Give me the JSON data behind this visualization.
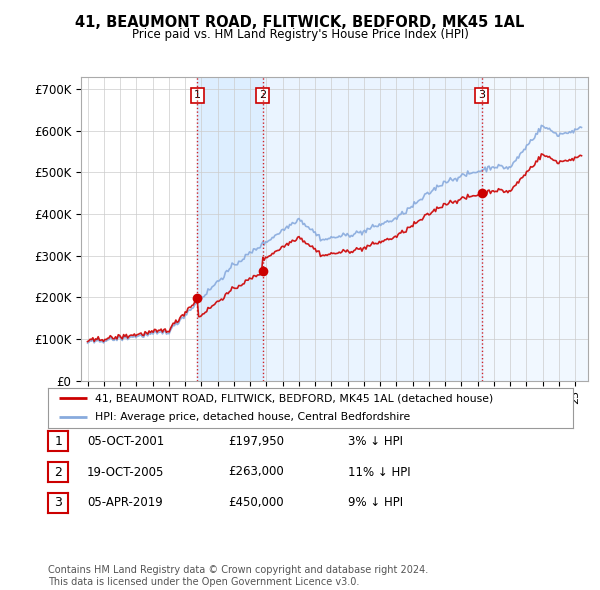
{
  "title": "41, BEAUMONT ROAD, FLITWICK, BEDFORD, MK45 1AL",
  "subtitle": "Price paid vs. HM Land Registry's House Price Index (HPI)",
  "ylim": [
    0,
    730000
  ],
  "yticks": [
    0,
    100000,
    200000,
    300000,
    400000,
    500000,
    600000,
    700000
  ],
  "ytick_labels": [
    "£0",
    "£100K",
    "£200K",
    "£300K",
    "£400K",
    "£500K",
    "£600K",
    "£700K"
  ],
  "xlim_left": 1994.6,
  "xlim_right": 2025.8,
  "sale_dates": [
    2001.76,
    2005.79,
    2019.26
  ],
  "sale_prices": [
    197950,
    263000,
    450000
  ],
  "sale_labels": [
    "1",
    "2",
    "3"
  ],
  "vline_color": "#cc0000",
  "sale_marker_color": "#cc0000",
  "hpi_line_color": "#88aadd",
  "price_line_color": "#cc0000",
  "span_color": "#ddeeff",
  "legend_label_price": "41, BEAUMONT ROAD, FLITWICK, BEDFORD, MK45 1AL (detached house)",
  "legend_label_hpi": "HPI: Average price, detached house, Central Bedfordshire",
  "table_rows": [
    [
      "1",
      "05-OCT-2001",
      "£197,950",
      "3% ↓ HPI"
    ],
    [
      "2",
      "19-OCT-2005",
      "£263,000",
      "11% ↓ HPI"
    ],
    [
      "3",
      "05-APR-2019",
      "£450,000",
      "9% ↓ HPI"
    ]
  ],
  "footnote": "Contains HM Land Registry data © Crown copyright and database right 2024.\nThis data is licensed under the Open Government Licence v3.0.",
  "background_color": "#ffffff",
  "grid_color": "#cccccc"
}
